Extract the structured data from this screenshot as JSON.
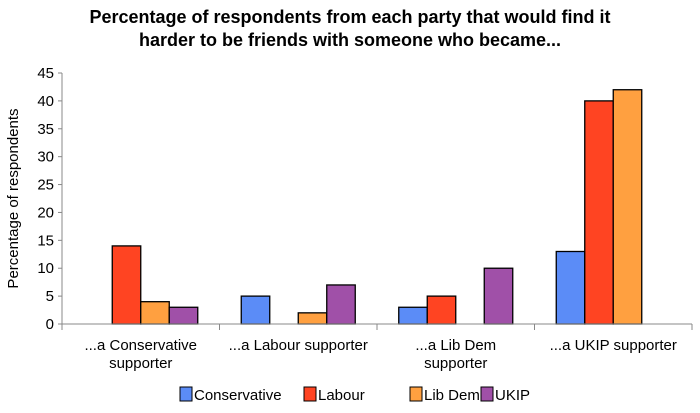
{
  "chart_data": {
    "type": "bar",
    "title_lines": [
      "Percentage of respondents from each party that would find it",
      "harder to be friends with someone who became..."
    ],
    "xlabel": "",
    "ylabel": "Percentage of respondents",
    "ylim": [
      0,
      45
    ],
    "yticks": [
      0,
      5,
      10,
      15,
      20,
      25,
      30,
      35,
      40,
      45
    ],
    "grid": false,
    "legend_position": "bottom",
    "categories": [
      [
        "...a Conservative",
        "supporter"
      ],
      [
        "...a Labour supporter"
      ],
      [
        "...a Lib Dem",
        "supporter"
      ],
      [
        "...a UKIP supporter"
      ]
    ],
    "series": [
      {
        "name": "Conservative",
        "color": "#5B8CF7",
        "values": [
          0,
          5,
          3,
          13
        ]
      },
      {
        "name": "Labour",
        "color": "#FF4422",
        "values": [
          14,
          0,
          5,
          40
        ]
      },
      {
        "name": "Lib Dem",
        "color": "#FFA040",
        "values": [
          4,
          2,
          0,
          42
        ]
      },
      {
        "name": "UKIP",
        "color": "#A050A8",
        "values": [
          3,
          7,
          10,
          0
        ]
      }
    ]
  }
}
